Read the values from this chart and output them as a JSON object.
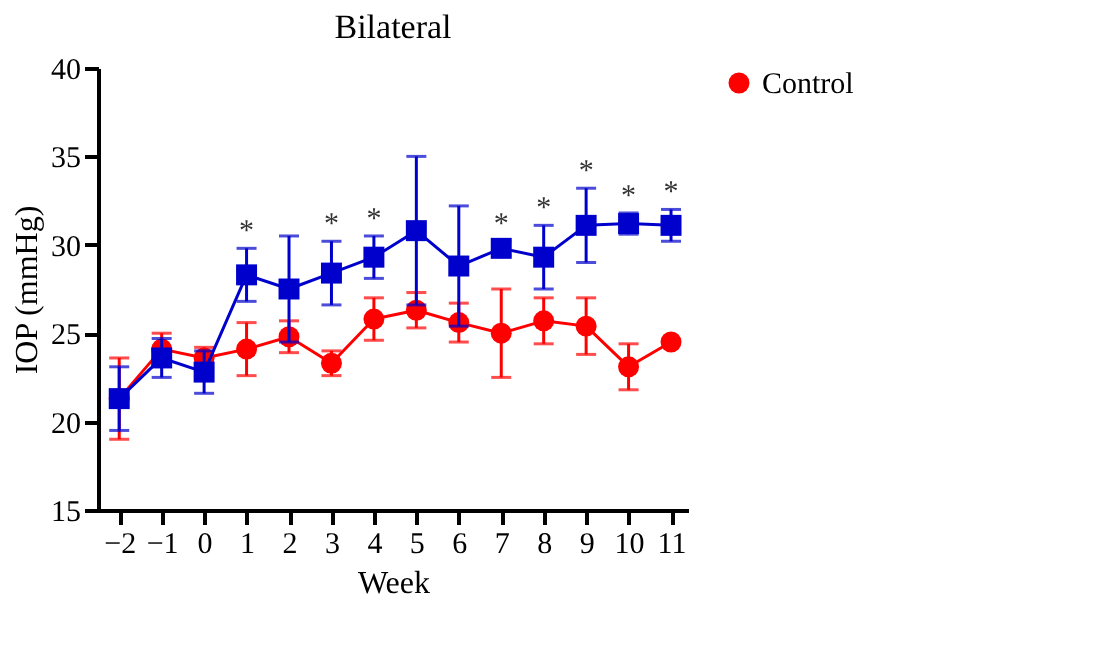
{
  "chart_data": {
    "type": "line",
    "title": "Bilateral",
    "xlabel": "Week",
    "ylabel": "IOP (mmHg)",
    "x": [
      -2,
      -1,
      0,
      1,
      2,
      3,
      4,
      5,
      6,
      7,
      8,
      9,
      10,
      11
    ],
    "series": [
      {
        "name": "Control",
        "color": "#ff0000",
        "marker": "circle",
        "values": [
          21.3,
          24.1,
          23.6,
          24.1,
          24.8,
          23.3,
          25.8,
          26.3,
          25.6,
          25.0,
          25.7,
          25.4,
          23.1,
          24.5
        ],
        "errors": [
          2.3,
          0.9,
          0.6,
          1.5,
          0.9,
          0.7,
          1.2,
          1.0,
          1.1,
          2.5,
          1.3,
          1.6,
          1.3,
          null
        ]
      },
      {
        "color": "#0000cc",
        "marker": "square",
        "values": [
          21.3,
          23.6,
          22.8,
          28.3,
          27.5,
          28.4,
          29.3,
          30.8,
          28.8,
          29.8,
          29.3,
          31.1,
          31.2,
          31.1
        ],
        "errors": [
          1.8,
          1.1,
          1.2,
          1.5,
          3.0,
          1.8,
          1.2,
          4.2,
          3.4,
          0.4,
          1.8,
          2.1,
          0.6,
          0.9
        ]
      }
    ],
    "annotations": [
      {
        "text": "*",
        "x": 1,
        "y": 28.3
      },
      {
        "text": "*",
        "x": 3,
        "y": 28.4
      },
      {
        "text": "*",
        "x": 4,
        "y": 29.3
      },
      {
        "text": "*",
        "x": 7,
        "y": 29.8
      },
      {
        "text": "*",
        "x": 8,
        "y": 29.3
      },
      {
        "text": "*",
        "x": 9,
        "y": 31.1
      },
      {
        "text": "*",
        "x": 10,
        "y": 31.2
      },
      {
        "text": "*",
        "x": 11,
        "y": 31.1
      }
    ],
    "xlim": [
      -2.5,
      11.4
    ],
    "xticks": [
      -2,
      -1,
      0,
      1,
      2,
      3,
      4,
      5,
      6,
      7,
      8,
      9,
      10,
      11
    ],
    "ylim": [
      15,
      40
    ],
    "yticks": [
      15,
      20,
      25,
      30,
      35,
      40
    ],
    "grid": false,
    "legend": "top right",
    "line_style": "solid"
  }
}
